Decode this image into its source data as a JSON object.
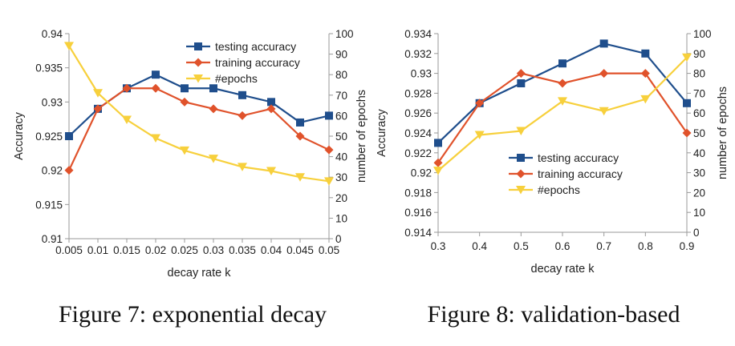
{
  "figures": [
    {
      "caption": "Figure 7: exponential decay",
      "chart_data": {
        "type": "line",
        "xlabel": "decay rate k",
        "ylabel": "Accuracy",
        "y2label": "number of epochs",
        "categories": [
          "0.005",
          "0.01",
          "0.015",
          "0.02",
          "0.025",
          "0.03",
          "0.035",
          "0.04",
          "0.045",
          "0.05"
        ],
        "y_ticks": [
          "0.91",
          "0.915",
          "0.92",
          "0.925",
          "0.93",
          "0.935",
          "0.94"
        ],
        "y2_ticks": [
          "0",
          "10",
          "20",
          "30",
          "40",
          "50",
          "60",
          "70",
          "80",
          "90",
          "100"
        ],
        "ylim": [
          0.91,
          0.94
        ],
        "y2lim": [
          0,
          100
        ],
        "grid": false,
        "legend_position": "top-right",
        "series": [
          {
            "name": "testing accuracy",
            "axis": "left",
            "color": "#1f4e8c",
            "marker": "square",
            "values": [
              0.925,
              0.929,
              0.932,
              0.934,
              0.932,
              0.932,
              0.931,
              0.93,
              0.927,
              0.928
            ]
          },
          {
            "name": "training accuracy",
            "axis": "left",
            "color": "#e0522b",
            "marker": "diamond",
            "values": [
              0.92,
              0.929,
              0.932,
              0.932,
              0.93,
              0.929,
              0.928,
              0.929,
              0.925,
              0.923
            ]
          },
          {
            "name": "#epochs",
            "axis": "right",
            "color": "#f7d03c",
            "marker": "triangle-down",
            "values": [
              94,
              71,
              58,
              49,
              43,
              39,
              35,
              33,
              30,
              28
            ]
          }
        ]
      }
    },
    {
      "caption": "Figure 8: validation-based",
      "chart_data": {
        "type": "line",
        "xlabel": "decay rate k",
        "ylabel": "Accuracy",
        "y2label": "number of epochs",
        "categories": [
          "0.3",
          "0.4",
          "0.5",
          "0.6",
          "0.7",
          "0.8",
          "0.9"
        ],
        "y_ticks": [
          "0.914",
          "0.916",
          "0.918",
          "0.92",
          "0.922",
          "0.924",
          "0.926",
          "0.928",
          "0.93",
          "0.932",
          "0.934"
        ],
        "y2_ticks": [
          "0",
          "10",
          "20",
          "30",
          "40",
          "50",
          "60",
          "70",
          "80",
          "90",
          "100"
        ],
        "ylim": [
          0.914,
          0.934
        ],
        "y2lim": [
          0,
          100
        ],
        "grid": false,
        "legend_position": "bottom-right",
        "series": [
          {
            "name": "testing accuracy",
            "axis": "left",
            "color": "#1f4e8c",
            "marker": "square",
            "values": [
              0.923,
              0.927,
              0.929,
              0.931,
              0.933,
              0.932,
              0.927
            ]
          },
          {
            "name": "training accuracy",
            "axis": "left",
            "color": "#e0522b",
            "marker": "diamond",
            "values": [
              0.921,
              0.927,
              0.93,
              0.929,
              0.93,
              0.93,
              0.924
            ]
          },
          {
            "name": "#epochs",
            "axis": "right",
            "color": "#f7d03c",
            "marker": "triangle-down",
            "values": [
              31,
              49,
              51,
              66,
              61,
              67,
              88
            ]
          }
        ]
      }
    }
  ]
}
